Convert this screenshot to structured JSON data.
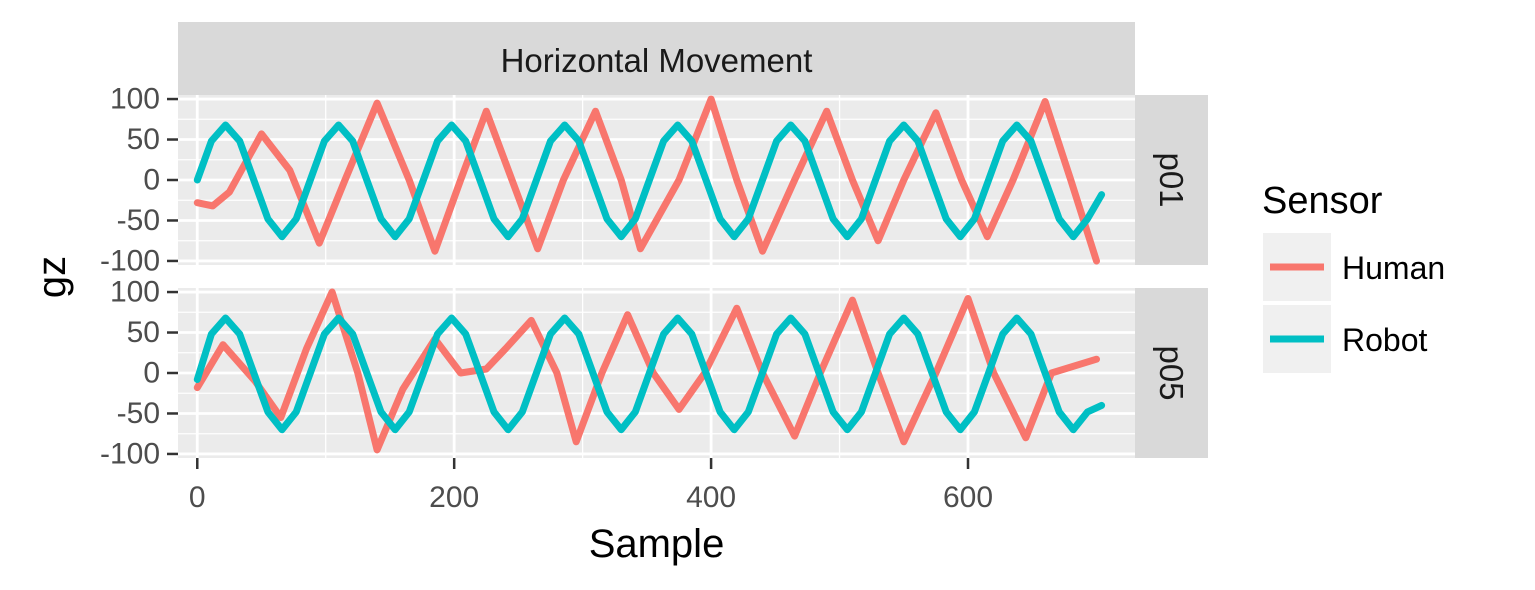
{
  "chart_data": {
    "type": "line",
    "facet_title": "Horizontal Movement",
    "xlabel": "Sample",
    "ylabel": "gz",
    "xlim": [
      -15,
      730
    ],
    "ylim": [
      -105,
      105
    ],
    "x_ticks": [
      0,
      200,
      400,
      600
    ],
    "x_tick_labels": [
      "0",
      "200",
      "400",
      "600"
    ],
    "y_ticks": [
      -100,
      -50,
      0,
      50,
      100
    ],
    "y_tick_labels": [
      "-100",
      "-50",
      "0",
      "50",
      "100"
    ],
    "grid": true,
    "legend": {
      "title": "Sensor",
      "position": "right",
      "entries": [
        {
          "label": "Human",
          "color": "#F8766D"
        },
        {
          "label": "Robot",
          "color": "#00BFC4"
        }
      ]
    },
    "panels": [
      {
        "label": "p01",
        "series": [
          {
            "name": "Human",
            "color": "#F8766D",
            "x": [
              0,
              12,
              25,
              50,
              72,
              95,
              115,
              140,
              165,
              185,
              205,
              225,
              245,
              265,
              285,
              310,
              330,
              345,
              375,
              400,
              420,
              440,
              465,
              490,
              510,
              530,
              550,
              575,
              595,
              615,
              635,
              660,
              680,
              700
            ],
            "y": [
              -28,
              -32,
              -15,
              57,
              12,
              -78,
              0,
              95,
              0,
              -88,
              0,
              85,
              0,
              -85,
              0,
              85,
              0,
              -85,
              0,
              100,
              0,
              -88,
              0,
              85,
              0,
              -75,
              0,
              83,
              0,
              -70,
              0,
              97,
              0,
              -100
            ]
          },
          {
            "name": "Robot",
            "color": "#00BFC4",
            "x": [
              0,
              11,
              22,
              33,
              44,
              55,
              66,
              77,
              88,
              99,
              110,
              121,
              132,
              143,
              154,
              165,
              176,
              187,
              198,
              209,
              220,
              231,
              242,
              253,
              264,
              275,
              286,
              297,
              308,
              319,
              330,
              341,
              352,
              363,
              374,
              385,
              396,
              407,
              418,
              429,
              440,
              451,
              462,
              473,
              484,
              495,
              506,
              517,
              528,
              539,
              550,
              561,
              572,
              583,
              594,
              605,
              616,
              627,
              638,
              649,
              660,
              671,
              682,
              693,
              704
            ],
            "y": [
              0,
              48,
              68,
              48,
              0,
              -48,
              -70,
              -48,
              0,
              48,
              68,
              48,
              0,
              -48,
              -70,
              -48,
              0,
              48,
              68,
              48,
              0,
              -48,
              -70,
              -48,
              0,
              48,
              68,
              48,
              0,
              -48,
              -70,
              -48,
              0,
              48,
              68,
              48,
              0,
              -48,
              -70,
              -48,
              0,
              48,
              68,
              48,
              0,
              -48,
              -70,
              -48,
              0,
              48,
              68,
              48,
              0,
              -48,
              -70,
              -48,
              0,
              48,
              68,
              48,
              0,
              -48,
              -70,
              -48,
              -18
            ]
          }
        ]
      },
      {
        "label": "p05",
        "series": [
          {
            "name": "Human",
            "color": "#F8766D",
            "x": [
              0,
              20,
              45,
              65,
              85,
              105,
              125,
              140,
              160,
              185,
              205,
              225,
              240,
              260,
              280,
              295,
              315,
              335,
              355,
              375,
              395,
              420,
              440,
              465,
              485,
              510,
              530,
              550,
              575,
              600,
              620,
              645,
              665,
              700
            ],
            "y": [
              -18,
              35,
              -10,
              -55,
              30,
              100,
              0,
              -95,
              -20,
              42,
              0,
              5,
              30,
              65,
              0,
              -85,
              0,
              72,
              0,
              -45,
              0,
              80,
              0,
              -78,
              0,
              90,
              0,
              -85,
              0,
              92,
              0,
              -80,
              0,
              17
            ]
          },
          {
            "name": "Robot",
            "color": "#00BFC4",
            "x": [
              0,
              11,
              22,
              33,
              44,
              55,
              66,
              77,
              88,
              99,
              110,
              121,
              132,
              143,
              154,
              165,
              176,
              187,
              198,
              209,
              220,
              231,
              242,
              253,
              264,
              275,
              286,
              297,
              308,
              319,
              330,
              341,
              352,
              363,
              374,
              385,
              396,
              407,
              418,
              429,
              440,
              451,
              462,
              473,
              484,
              495,
              506,
              517,
              528,
              539,
              550,
              561,
              572,
              583,
              594,
              605,
              616,
              627,
              638,
              649,
              660,
              671,
              682,
              693,
              704
            ],
            "y": [
              -8,
              48,
              68,
              48,
              0,
              -48,
              -70,
              -48,
              0,
              48,
              68,
              48,
              0,
              -48,
              -70,
              -48,
              0,
              48,
              68,
              48,
              0,
              -48,
              -70,
              -48,
              0,
              48,
              68,
              48,
              0,
              -48,
              -70,
              -48,
              0,
              48,
              68,
              48,
              0,
              -48,
              -70,
              -48,
              0,
              48,
              68,
              48,
              0,
              -48,
              -70,
              -48,
              0,
              48,
              68,
              48,
              0,
              -48,
              -70,
              -48,
              0,
              48,
              68,
              48,
              0,
              -48,
              -70,
              -48,
              -40
            ]
          }
        ]
      }
    ]
  }
}
